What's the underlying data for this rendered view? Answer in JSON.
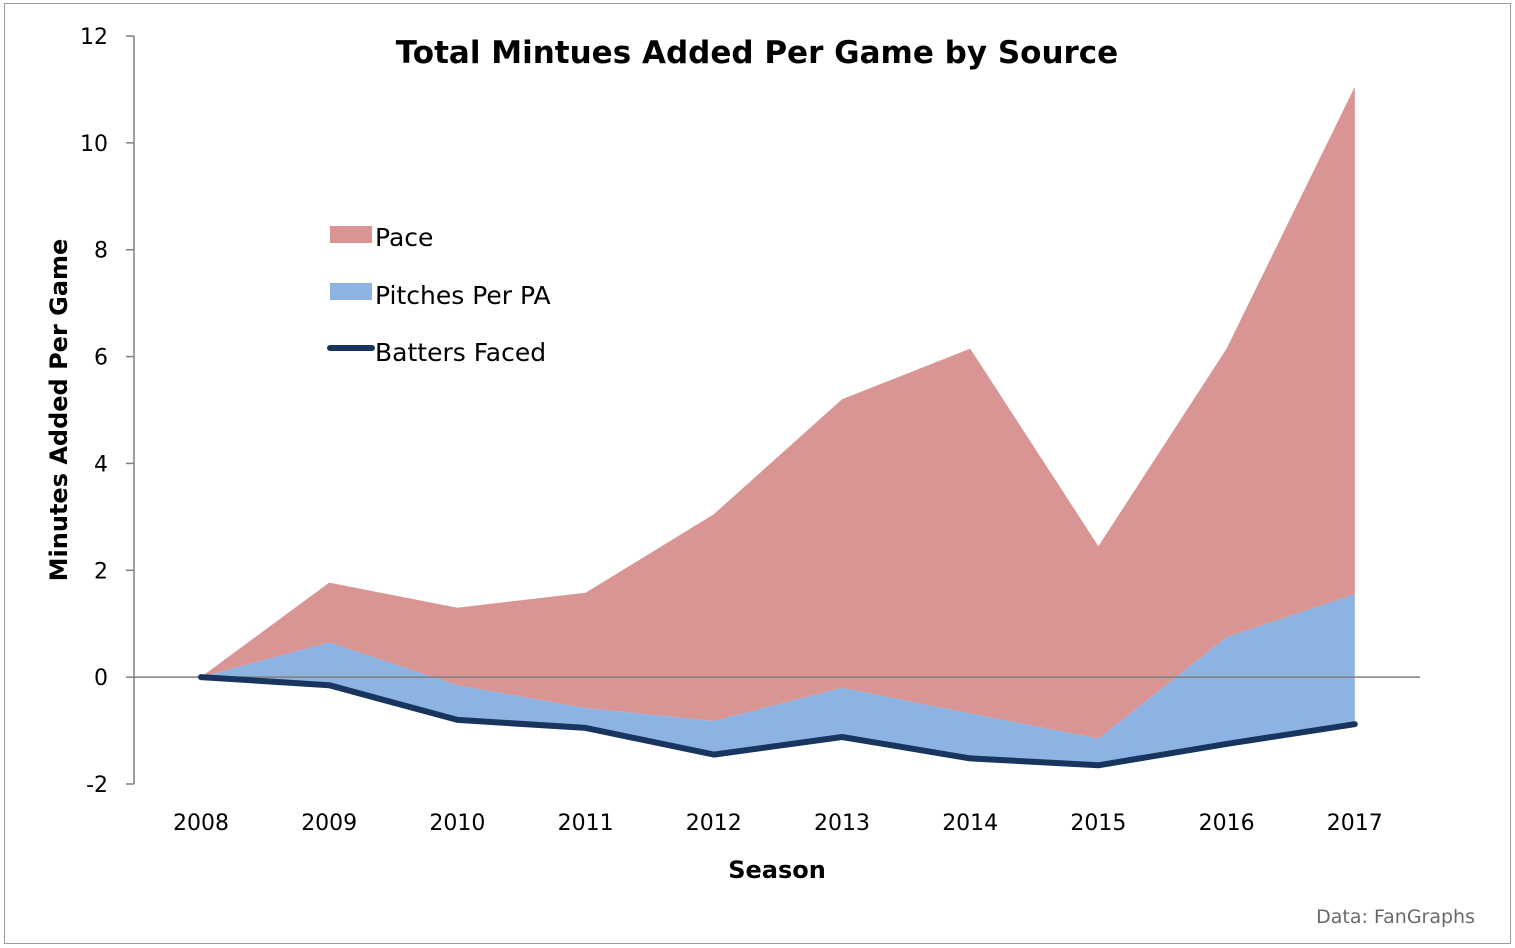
{
  "chart_data": {
    "type": "area",
    "title": "Total Mintues Added Per Game by Source",
    "xlabel": "Season",
    "ylabel": "Minutes Added Per Game",
    "categories": [
      "2008",
      "2009",
      "2010",
      "2011",
      "2012",
      "2013",
      "2014",
      "2015",
      "2016",
      "2017"
    ],
    "ylim": [
      -2,
      12
    ],
    "yticks": [
      "-2",
      "0",
      "2",
      "4",
      "6",
      "8",
      "10",
      "12"
    ],
    "grid": false,
    "legend_position": "upper-left",
    "series": [
      {
        "name": "Batters Faced",
        "kind": "line",
        "color": "#17355e",
        "values": [
          0,
          -0.15,
          -0.8,
          -0.95,
          -1.45,
          -1.12,
          -1.52,
          -1.65,
          -1.25,
          -0.88
        ]
      },
      {
        "name": "Pitches Per PA",
        "kind": "stacked-area",
        "color": "#8db3e2",
        "values": [
          0,
          0.65,
          -0.15,
          -0.58,
          -0.82,
          -0.2,
          -0.68,
          -1.15,
          0.75,
          1.55
        ]
      },
      {
        "name": "Pace",
        "kind": "stacked-area",
        "color": "#d99594",
        "values": [
          0,
          1.77,
          1.3,
          1.58,
          3.05,
          5.2,
          6.15,
          2.45,
          6.15,
          11.05
        ]
      }
    ],
    "source_note": "Data: FanGraphs"
  }
}
